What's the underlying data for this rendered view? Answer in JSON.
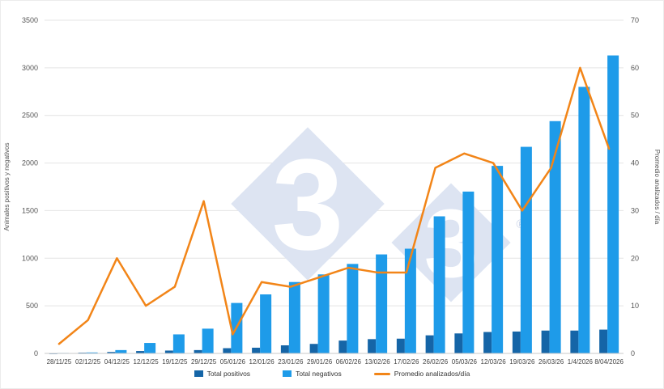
{
  "chart_data": {
    "type": "combo-bar-line",
    "categories": [
      "28/11/25",
      "02/12/25",
      "04/12/25",
      "12/12/25",
      "19/12/25",
      "29/12/25",
      "05/01/26",
      "12/01/26",
      "23/01/26",
      "29/01/26",
      "06/02/26",
      "13/02/26",
      "17/02/26",
      "26/02/26",
      "05/03/26",
      "12/03/26",
      "19/03/26",
      "26/03/26",
      "1/4/2026",
      "8/04/2026"
    ],
    "series": [
      {
        "name": "Total positivos",
        "type": "bar",
        "axis": "left",
        "color": "#1565A7",
        "values": [
          2,
          8,
          15,
          25,
          30,
          35,
          55,
          60,
          85,
          100,
          135,
          150,
          155,
          190,
          210,
          225,
          230,
          240,
          240,
          250
        ]
      },
      {
        "name": "Total negativos",
        "type": "bar",
        "axis": "left",
        "color": "#1E9BE9",
        "values": [
          5,
          10,
          35,
          110,
          200,
          260,
          530,
          620,
          750,
          830,
          940,
          1040,
          1100,
          1440,
          1700,
          1970,
          2170,
          2440,
          2800,
          3130
        ]
      },
      {
        "name": "Promedio analizados/día",
        "type": "line",
        "axis": "right",
        "color": "#F28518",
        "values": [
          2,
          7,
          20,
          10,
          14,
          32,
          4,
          15,
          14,
          16,
          18,
          17,
          17,
          39,
          42,
          40,
          30,
          39,
          60,
          43
        ]
      }
    ],
    "title": "",
    "xlabel": "",
    "ylabel_left": "Animales positivos y negativos",
    "ylabel_right": "Promedio analizados / día",
    "left_axis": {
      "min": 0,
      "max": 3500,
      "step": 500
    },
    "right_axis": {
      "min": 0,
      "max": 70,
      "step": 10
    },
    "grid": true,
    "legend_position": "bottom"
  },
  "watermark": {
    "digit": "3",
    "registered": "®",
    "fill_color": "#dde4f2",
    "registered_color": "#ccd5ea",
    "digit_color": "#ffffff"
  },
  "style": {
    "grid_color": "#e4e4e4",
    "axis_line_color": "#c9c9c9",
    "tick_text_color": "#555555",
    "category_text_color": "#444444"
  }
}
